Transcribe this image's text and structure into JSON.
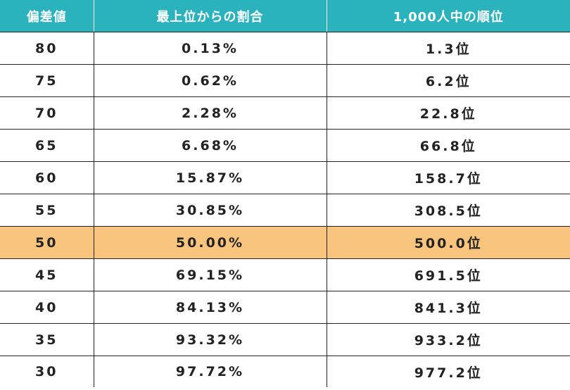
{
  "table": {
    "headers": [
      "偏差値",
      "最上位からの割合",
      "1,000人中の順位"
    ],
    "rows": [
      [
        "80",
        "0.13%",
        "1.3位"
      ],
      [
        "75",
        "0.62%",
        "6.2位"
      ],
      [
        "70",
        "2.28%",
        "22.8位"
      ],
      [
        "65",
        "6.68%",
        "66.8位"
      ],
      [
        "60",
        "15.87%",
        "158.7位"
      ],
      [
        "55",
        "30.85%",
        "308.5位"
      ],
      [
        "50",
        "50.00%",
        "500.0位"
      ],
      [
        "45",
        "69.15%",
        "691.5位"
      ],
      [
        "40",
        "84.13%",
        "841.3位"
      ],
      [
        "35",
        "93.32%",
        "933.2位"
      ],
      [
        "30",
        "97.72%",
        "977.2位"
      ]
    ],
    "highlight_row": 6,
    "colors": {
      "header_bg": "#2ab3bd",
      "header_text": "#ffffff",
      "highlight_bg": "#f9c47e",
      "border": "#222222"
    }
  }
}
